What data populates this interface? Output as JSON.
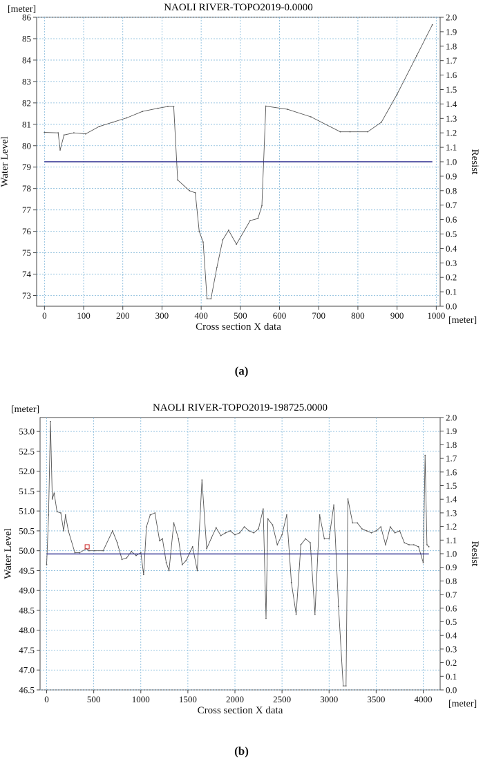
{
  "chart_data": [
    {
      "type": "line",
      "title": "NAOLI RIVER-TOPO2019-0.0000",
      "xlabel": "Cross section X data",
      "ylabel": "Water Level",
      "y2label": "Resist",
      "xunit": "[meter]",
      "yunit": "[meter]",
      "xlim": [
        -20,
        1010
      ],
      "ylim": [
        72.5,
        86
      ],
      "y2lim": [
        0,
        2.0
      ],
      "xticks": [
        "0",
        "100",
        "200",
        "300",
        "400",
        "500",
        "600",
        "700",
        "800",
        "900",
        "1000"
      ],
      "yticks": [
        "73",
        "74",
        "75",
        "76",
        "77",
        "78",
        "79",
        "80",
        "81",
        "82",
        "83",
        "84",
        "85",
        "86"
      ],
      "y2ticks": [
        "0.0",
        "0.1",
        "0.2",
        "0.3",
        "0.4",
        "0.5",
        "0.6",
        "0.7",
        "0.8",
        "0.9",
        "1.0",
        "1.1",
        "1.2",
        "1.3",
        "1.4",
        "1.5",
        "1.6",
        "1.7",
        "1.8",
        "1.9",
        "2.0"
      ],
      "grid": true,
      "series": [
        {
          "role": "terrain",
          "color": "#555555",
          "x": [
            0,
            35,
            40,
            50,
            75,
            105,
            140,
            175,
            210,
            250,
            290,
            315,
            330,
            340,
            370,
            385,
            395,
            405,
            415,
            425,
            440,
            455,
            470,
            490,
            525,
            545,
            555,
            565,
            620,
            680,
            755,
            780,
            825,
            860,
            900,
            950,
            990
          ],
          "y": [
            80.62,
            80.6,
            79.8,
            80.5,
            80.6,
            80.55,
            80.9,
            81.1,
            81.3,
            81.6,
            81.75,
            81.83,
            81.83,
            78.4,
            77.9,
            77.8,
            76.0,
            75.5,
            72.85,
            72.85,
            74.3,
            75.6,
            76.05,
            75.4,
            76.5,
            76.6,
            77.2,
            81.85,
            81.7,
            81.35,
            80.65,
            80.65,
            80.65,
            81.1,
            82.4,
            84.2,
            85.65
          ]
        },
        {
          "role": "water-level",
          "color": "#2b2b8f",
          "x": [
            0,
            990
          ],
          "y": [
            79.25,
            79.25
          ]
        }
      ]
    },
    {
      "type": "line",
      "title": "NAOLI  RIVER-TOPO2019-198725.0000",
      "xlabel": "Cross section X data",
      "ylabel": "Water Level",
      "y2label": "Resist",
      "xunit": "[meter]",
      "yunit": "[meter]",
      "xlim": [
        -70,
        4180
      ],
      "ylim": [
        46.5,
        53.35
      ],
      "y2lim": [
        0,
        2.0
      ],
      "xticks": [
        "0",
        "500",
        "1000",
        "1500",
        "2000",
        "2500",
        "3000",
        "3500",
        "4000"
      ],
      "yticks": [
        "46.5",
        "47.0",
        "47.5",
        "48.0",
        "48.5",
        "49.0",
        "49.5",
        "50.0",
        "50.5",
        "51.0",
        "51.5",
        "52.0",
        "52.5",
        "53.0"
      ],
      "y2ticks": [
        "0.0",
        "0.1",
        "0.2",
        "0.3",
        "0.4",
        "0.5",
        "0.6",
        "0.7",
        "0.8",
        "0.9",
        "1.0",
        "1.1",
        "1.2",
        "1.3",
        "1.4",
        "1.5",
        "1.6",
        "1.7",
        "1.8",
        "1.9",
        "2.0"
      ],
      "grid": true,
      "series": [
        {
          "role": "terrain",
          "color": "#555555",
          "x": [
            0,
            20,
            40,
            60,
            80,
            110,
            150,
            180,
            200,
            230,
            300,
            350,
            420,
            450,
            510,
            600,
            700,
            750,
            800,
            850,
            900,
            950,
            1000,
            1030,
            1060,
            1100,
            1150,
            1200,
            1230,
            1270,
            1300,
            1350,
            1400,
            1440,
            1480,
            1550,
            1600,
            1650,
            1700,
            1750,
            1800,
            1850,
            1900,
            1950,
            2000,
            2050,
            2100,
            2150,
            2200,
            2250,
            2300,
            2330,
            2350,
            2400,
            2450,
            2500,
            2550,
            2600,
            2650,
            2700,
            2750,
            2800,
            2850,
            2900,
            2950,
            3000,
            3050,
            3100,
            3150,
            3180,
            3200,
            3250,
            3300,
            3350,
            3400,
            3450,
            3500,
            3550,
            3600,
            3650,
            3700,
            3750,
            3800,
            3850,
            3900,
            3950,
            4000,
            4020,
            4040,
            4060
          ],
          "y": [
            49.65,
            50.9,
            53.25,
            51.3,
            51.45,
            50.98,
            50.95,
            50.5,
            50.9,
            50.5,
            49.95,
            49.95,
            50.05,
            50.0,
            50.0,
            50.0,
            50.5,
            50.2,
            49.78,
            49.82,
            49.98,
            49.88,
            49.95,
            49.4,
            50.6,
            50.9,
            50.95,
            50.25,
            50.3,
            49.7,
            49.5,
            50.7,
            50.3,
            49.65,
            49.75,
            50.1,
            49.5,
            51.78,
            50.05,
            50.32,
            50.58,
            50.38,
            50.45,
            50.5,
            50.4,
            50.45,
            50.6,
            50.5,
            50.45,
            50.55,
            51.05,
            48.3,
            50.8,
            50.65,
            50.15,
            50.4,
            50.9,
            49.2,
            48.4,
            50.15,
            50.3,
            50.2,
            48.4,
            50.9,
            50.3,
            50.3,
            51.15,
            48.6,
            46.6,
            46.6,
            51.3,
            50.7,
            50.7,
            50.55,
            50.5,
            50.45,
            50.5,
            50.6,
            50.15,
            50.6,
            50.45,
            50.5,
            50.2,
            50.15,
            50.15,
            50.1,
            49.7,
            52.4,
            50.15,
            50.1
          ],
          "marker": {
            "x": 430,
            "y": 50.1,
            "color": "#cc2222"
          }
        },
        {
          "role": "water-level",
          "color": "#2b2b8f",
          "x": [
            0,
            4060
          ],
          "y": [
            49.92,
            49.92
          ]
        }
      ]
    }
  ],
  "labels": {
    "panel_a": "(a)",
    "panel_b": "(b)"
  }
}
